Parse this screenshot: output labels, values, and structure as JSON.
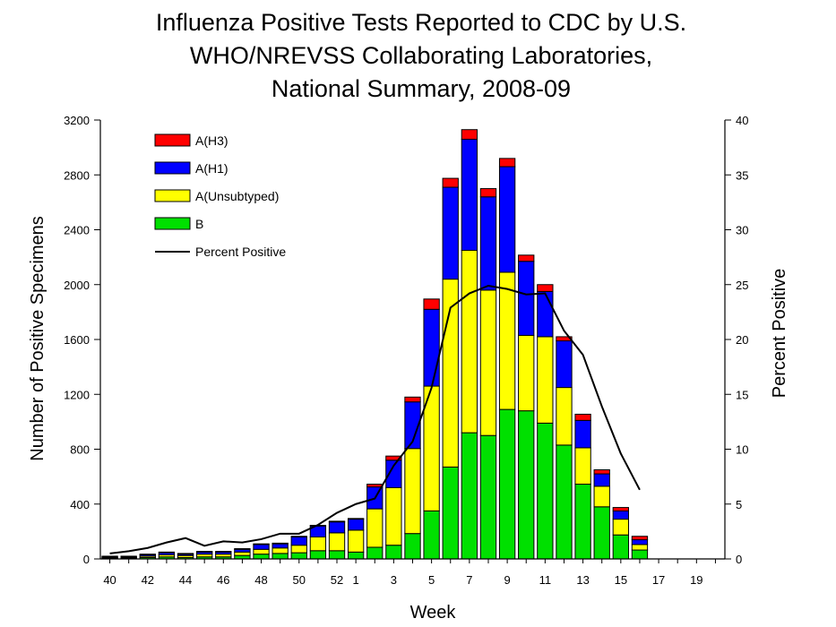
{
  "chart_data": {
    "type": "bar",
    "stacked": true,
    "title_lines": [
      "Influenza Positive Tests Reported to CDC by U.S.",
      "WHO/NREVSS Collaborating Laboratories,",
      "National Summary, 2008-09"
    ],
    "xlabel": "Week",
    "ylabel": "Number of Positive Specimens",
    "y2label": "Percent Positive",
    "ylim": [
      0,
      3200
    ],
    "y2lim": [
      0,
      40
    ],
    "yticks": [
      "0",
      "400",
      "800",
      "1200",
      "1600",
      "2000",
      "2400",
      "2800",
      "3200"
    ],
    "y2ticks": [
      "0",
      "5",
      "10",
      "15",
      "20",
      "25",
      "30",
      "35",
      "40"
    ],
    "categories": [
      "40",
      "41",
      "42",
      "43",
      "44",
      "45",
      "46",
      "47",
      "48",
      "49",
      "50",
      "51",
      "52",
      "1",
      "2",
      "3",
      "4",
      "5",
      "6",
      "7",
      "8",
      "9",
      "10",
      "11",
      "12",
      "13",
      "14",
      "15",
      "16",
      "17",
      "18",
      "19",
      "20"
    ],
    "x_tick_labels": [
      "40",
      "",
      "42",
      "",
      "44",
      "",
      "46",
      "",
      "48",
      "",
      "50",
      "",
      "52",
      "1",
      "",
      "3",
      "",
      "5",
      "",
      "7",
      "",
      "9",
      "",
      "11",
      "",
      "13",
      "",
      "15",
      "",
      "17",
      "",
      "19",
      ""
    ],
    "legend_position": "top-left",
    "series": [
      {
        "name": "B",
        "color": "#00e000",
        "values": [
          5,
          5,
          10,
          15,
          10,
          15,
          15,
          25,
          35,
          40,
          45,
          60,
          60,
          50,
          85,
          100,
          185,
          350,
          670,
          920,
          900,
          1090,
          1080,
          990,
          830,
          545,
          380,
          175,
          65,
          0,
          0,
          0,
          0
        ]
      },
      {
        "name": "A(Unsubtyped)",
        "color": "#ffff00",
        "values": [
          5,
          5,
          10,
          15,
          15,
          20,
          20,
          25,
          35,
          40,
          55,
          100,
          130,
          160,
          280,
          420,
          620,
          910,
          1370,
          1330,
          1060,
          1000,
          550,
          630,
          420,
          265,
          150,
          115,
          40,
          0,
          0,
          0,
          0
        ]
      },
      {
        "name": "A(H1)",
        "color": "#0000ff",
        "values": [
          5,
          5,
          10,
          15,
          10,
          15,
          15,
          20,
          35,
          30,
          60,
          80,
          80,
          80,
          160,
          200,
          340,
          560,
          670,
          810,
          680,
          770,
          540,
          330,
          340,
          200,
          90,
          60,
          35,
          0,
          0,
          0,
          0
        ]
      },
      {
        "name": "A(H3)",
        "color": "#ff0000",
        "values": [
          5,
          5,
          5,
          5,
          5,
          5,
          5,
          5,
          5,
          5,
          5,
          5,
          5,
          5,
          20,
          30,
          35,
          75,
          65,
          70,
          60,
          60,
          45,
          50,
          30,
          45,
          30,
          25,
          25,
          0,
          0,
          0,
          0
        ]
      }
    ],
    "legend_order": [
      "A(H3)",
      "A(H1)",
      "A(Unsubtyped)",
      "B",
      "Percent Positive"
    ],
    "percent_positive": {
      "name": "Percent Positive",
      "color": "#000000",
      "axis": "right",
      "values": [
        0.5,
        0.7,
        1.0,
        1.5,
        1.9,
        1.2,
        1.6,
        1.5,
        1.8,
        2.3,
        2.3,
        3.1,
        4.2,
        5.0,
        5.5,
        8.5,
        10.7,
        15.6,
        22.9,
        24.2,
        24.9,
        24.6,
        24.1,
        24.2,
        20.8,
        18.6,
        13.9,
        9.6,
        6.3,
        null,
        null,
        null,
        null
      ]
    }
  }
}
